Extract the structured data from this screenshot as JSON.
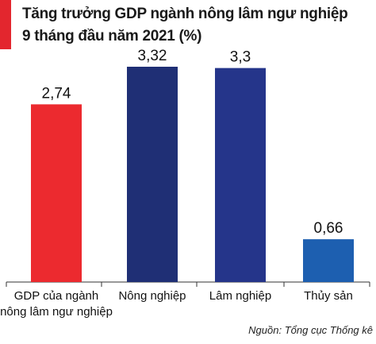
{
  "chart_data": {
    "type": "bar",
    "title": "Tăng trưởng GDP ngành nông lâm ngư nghiệp",
    "subtitle": "9 tháng đầu năm 2021 (%)",
    "categories": [
      [
        "GDP của ngành",
        "nông lâm ngư nghiệp"
      ],
      [
        "Nông nghiệp"
      ],
      [
        "Lâm nghiệp"
      ],
      [
        "Thủy sản"
      ]
    ],
    "values": [
      2.74,
      3.32,
      3.3,
      0.66
    ],
    "value_labels": [
      "2,74",
      "3,32",
      "3,3",
      "0,66"
    ],
    "bar_colors": [
      "#ec2a2f",
      "#1f2f75",
      "#25358a",
      "#1d5fb0"
    ],
    "ylim": [
      0,
      3.32
    ],
    "grid": false,
    "xlabel": "",
    "ylabel": ""
  },
  "colors": {
    "accent": "#e3262e",
    "text": "#1a1a1a"
  },
  "source": "Nguồn: Tổng cục Thống kê"
}
